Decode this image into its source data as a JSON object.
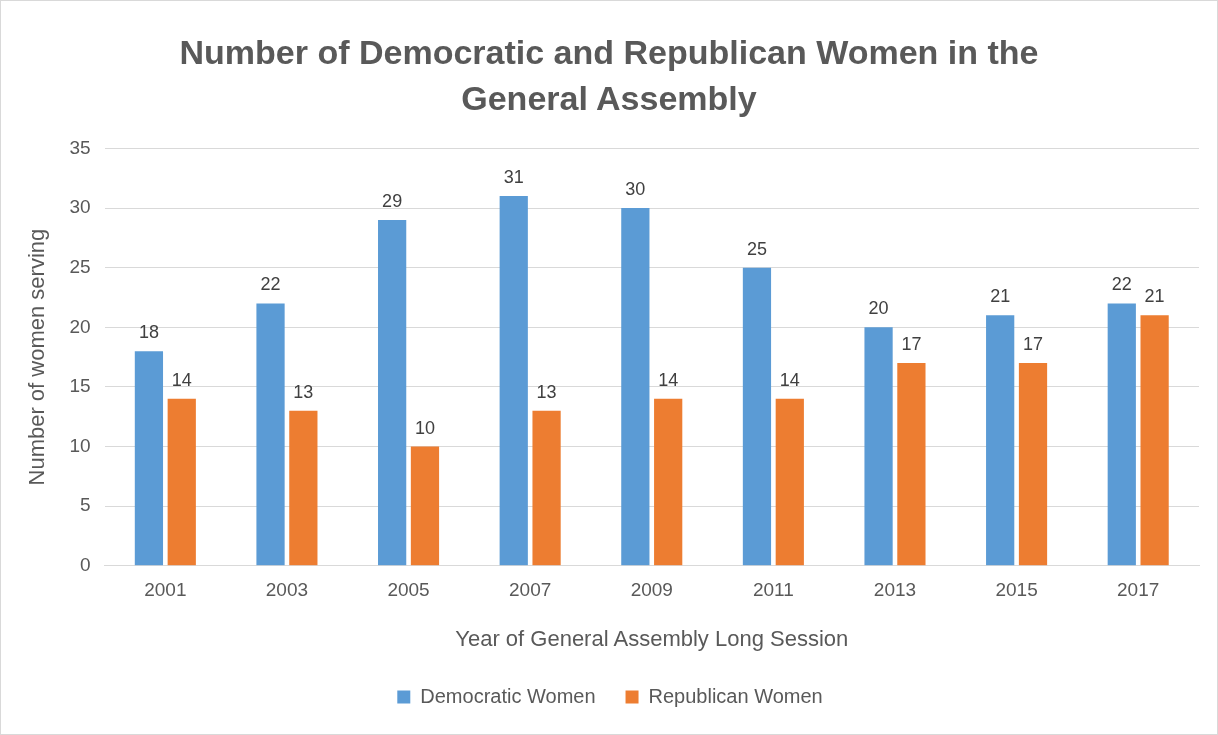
{
  "chart_data": {
    "type": "bar",
    "title": "Number of Democratic and Republican Women in the General Assembly",
    "xlabel": "Year of General Assembly Long Session",
    "ylabel": "Number of women serving",
    "categories": [
      "2001",
      "2003",
      "2005",
      "2007",
      "2009",
      "2011",
      "2013",
      "2015",
      "2017"
    ],
    "series": [
      {
        "name": "Democratic Women",
        "color": "#5b9bd5",
        "values": [
          18,
          22,
          29,
          31,
          30,
          25,
          20,
          21,
          22
        ]
      },
      {
        "name": "Republican Women",
        "color": "#ed7d31",
        "values": [
          14,
          13,
          10,
          13,
          14,
          14,
          17,
          17,
          21
        ]
      }
    ],
    "ylim": [
      0,
      35
    ],
    "yticks": [
      0,
      5,
      10,
      15,
      20,
      25,
      30,
      35
    ],
    "grid": "y",
    "legend": "bottom",
    "data_labels": true
  }
}
